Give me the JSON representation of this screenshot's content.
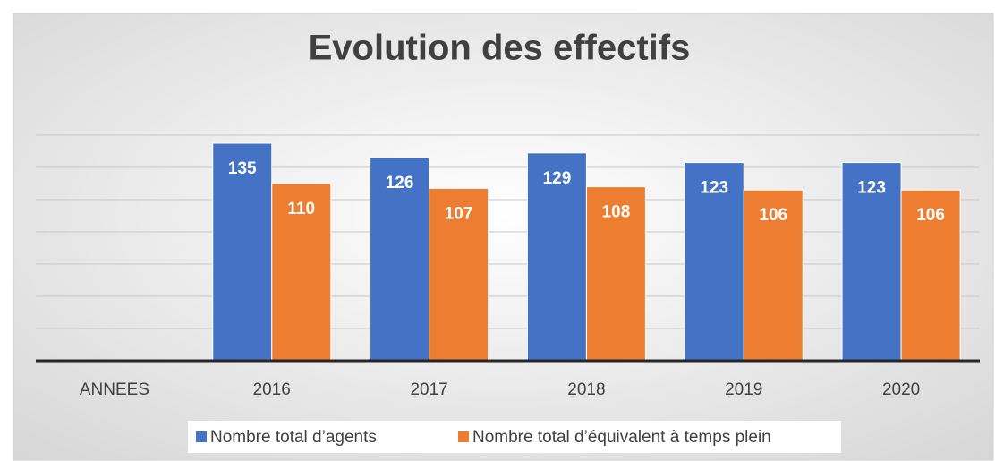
{
  "chart_data": {
    "type": "bar",
    "title": "Evolution des effectifs",
    "categories": [
      "ANNEES",
      "2016",
      "2017",
      "2018",
      "2019",
      "2020"
    ],
    "series": [
      {
        "name": "Nombre total d’agents",
        "color": "#4472c4",
        "values": [
          null,
          135,
          126,
          129,
          123,
          123
        ]
      },
      {
        "name": "Nombre total d’équivalent à temps plein",
        "color": "#ed7d31",
        "values": [
          null,
          110,
          107,
          108,
          106,
          106
        ]
      }
    ],
    "ylim": [
      0,
      140
    ],
    "yticks": [
      0,
      20,
      40,
      60,
      80,
      100,
      120,
      140
    ],
    "grid": true,
    "show_ytick_labels": false,
    "legend": "bottom"
  }
}
